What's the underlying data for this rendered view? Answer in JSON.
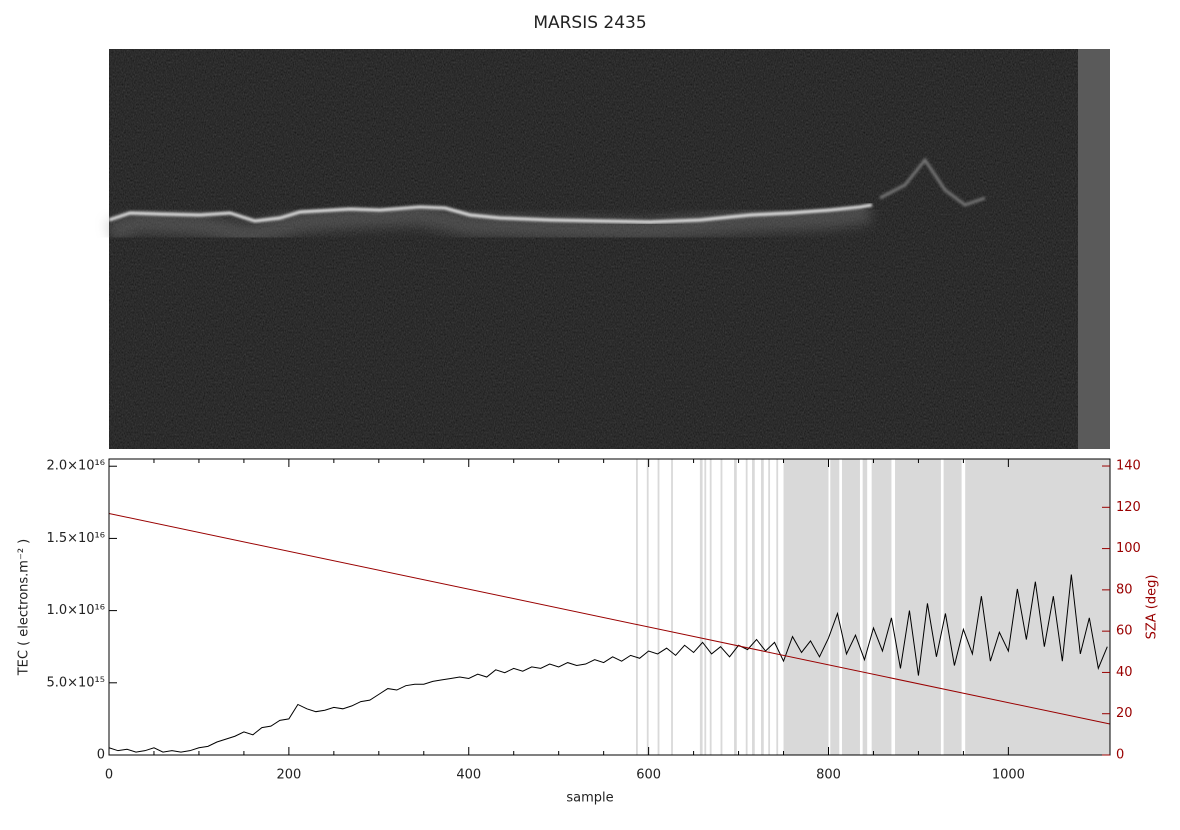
{
  "chart_data": {
    "type": "line",
    "title": "MARSIS 2435",
    "xlabel": "sample",
    "ylabel": "TEC ( electrons.m⁻² )",
    "y2label": "SZA (deg)",
    "xlim": [
      0,
      1113
    ],
    "xticks": [
      0,
      200,
      400,
      600,
      800,
      1000
    ],
    "ylim": [
      0,
      2.05e+16
    ],
    "yticks": [
      0,
      {
        "value": 5000000000000000.0,
        "label": "5.0×10¹⁵"
      },
      {
        "value": 1e+16,
        "label": "1.0×10¹⁶"
      },
      {
        "value": 1.5e+16,
        "label": "1.5×10¹⁶"
      },
      {
        "value": 2e+16,
        "label": "2.0×10¹⁶"
      }
    ],
    "y2lim": [
      0,
      143.4
    ],
    "y2ticks": [
      0,
      20,
      40,
      60,
      80,
      100,
      120,
      140
    ],
    "y2color": "#990000",
    "shade_color": "#d9d9d9",
    "shaded_ranges": [
      [
        586,
        588
      ],
      [
        598,
        600
      ],
      [
        610,
        612
      ],
      [
        625,
        627
      ],
      [
        657,
        660
      ],
      [
        662,
        664
      ],
      [
        668,
        670
      ],
      [
        680,
        682
      ],
      [
        695,
        698
      ],
      [
        708,
        710
      ],
      [
        715,
        718
      ],
      [
        725,
        728
      ],
      [
        733,
        735
      ],
      [
        742,
        744
      ],
      [
        750,
        800
      ],
      [
        802,
        812
      ],
      [
        815,
        835
      ],
      [
        838,
        843
      ],
      [
        848,
        870
      ],
      [
        874,
        925
      ],
      [
        928,
        948
      ],
      [
        952,
        1113
      ]
    ],
    "x": [
      0,
      10,
      20,
      30,
      40,
      50,
      60,
      70,
      80,
      90,
      100,
      110,
      120,
      130,
      140,
      150,
      160,
      170,
      180,
      190,
      200,
      210,
      220,
      230,
      240,
      250,
      260,
      270,
      280,
      290,
      300,
      310,
      320,
      330,
      340,
      350,
      360,
      370,
      380,
      390,
      400,
      410,
      420,
      430,
      440,
      450,
      460,
      470,
      480,
      490,
      500,
      510,
      520,
      530,
      540,
      550,
      560,
      570,
      580,
      590,
      600,
      610,
      620,
      630,
      640,
      650,
      660,
      670,
      680,
      690,
      700,
      710,
      720,
      730,
      740,
      750,
      760,
      770,
      780,
      790,
      800,
      810,
      820,
      830,
      840,
      850,
      860,
      870,
      880,
      890,
      900,
      910,
      920,
      930,
      940,
      950,
      960,
      970,
      980,
      990,
      1000,
      1010,
      1020,
      1030,
      1040,
      1050,
      1060,
      1070,
      1080,
      1090,
      1100,
      1110
    ],
    "series": [
      {
        "color": "#000000",
        "values": [
          500000000000000.0,
          300000000000000.0,
          400000000000000.0,
          200000000000000.0,
          300000000000000.0,
          500000000000000.0,
          200000000000000.0,
          300000000000000.0,
          200000000000000.0,
          300000000000000.0,
          500000000000000.0,
          600000000000000.0,
          900000000000000.0,
          1100000000000000.0,
          1300000000000000.0,
          1600000000000000.0,
          1400000000000000.0,
          1900000000000000.0,
          2000000000000000.0,
          2400000000000000.0,
          2500000000000000.0,
          3500000000000000.0,
          3200000000000000.0,
          3000000000000000.0,
          3100000000000000.0,
          3300000000000000.0,
          3200000000000000.0,
          3400000000000000.0,
          3700000000000000.0,
          3800000000000000.0,
          4200000000000000.0,
          4600000000000000.0,
          4500000000000000.0,
          4800000000000000.0,
          4900000000000000.0,
          4900000000000000.0,
          5100000000000000.0,
          5200000000000000.0,
          5300000000000000.0,
          5400000000000000.0,
          5300000000000000.0,
          5600000000000000.0,
          5400000000000000.0,
          5900000000000000.0,
          5700000000000000.0,
          6000000000000000.0,
          5800000000000000.0,
          6100000000000000.0,
          6000000000000000.0,
          6300000000000000.0,
          6100000000000000.0,
          6400000000000000.0,
          6200000000000000.0,
          6300000000000000.0,
          6600000000000000.0,
          6400000000000000.0,
          6800000000000000.0,
          6500000000000000.0,
          6900000000000000.0,
          6700000000000000.0,
          7200000000000000.0,
          7000000000000000.0,
          7400000000000000.0,
          6900000000000000.0,
          7600000000000000.0,
          7100000000000000.0,
          7800000000000000.0,
          7000000000000000.0,
          7500000000000000.0,
          6800000000000000.0,
          7600000000000000.0,
          7300000000000000.0,
          8000000000000000.0,
          7200000000000000.0,
          7800000000000000.0,
          6500000000000000.0,
          8200000000000000.0,
          7100000000000000.0,
          7900000000000000.0,
          6800000000000000.0,
          8100000000000000.0,
          9800000000000000.0,
          7000000000000000.0,
          8300000000000000.0,
          6600000000000000.0,
          8800000000000000.0,
          7200000000000000.0,
          9500000000000000.0,
          6000000000000000.0,
          1e+16,
          5500000000000000.0,
          1.05e+16,
          6800000000000000.0,
          9800000000000000.0,
          6200000000000000.0,
          8700000000000000.0,
          7000000000000000.0,
          1.1e+16,
          6500000000000000.0,
          8500000000000000.0,
          7200000000000000.0,
          1.15e+16,
          8000000000000000.0,
          1.2e+16,
          7500000000000000.0,
          1.1e+16,
          6500000000000000.0,
          1.25e+16,
          7000000000000000.0,
          9500000000000000.0,
          6000000000000000.0,
          7500000000000000.0
        ]
      },
      {
        "color": "#990000",
        "axis": "y2",
        "x": [
          0,
          1113
        ],
        "values": [
          117,
          15
        ]
      }
    ]
  }
}
